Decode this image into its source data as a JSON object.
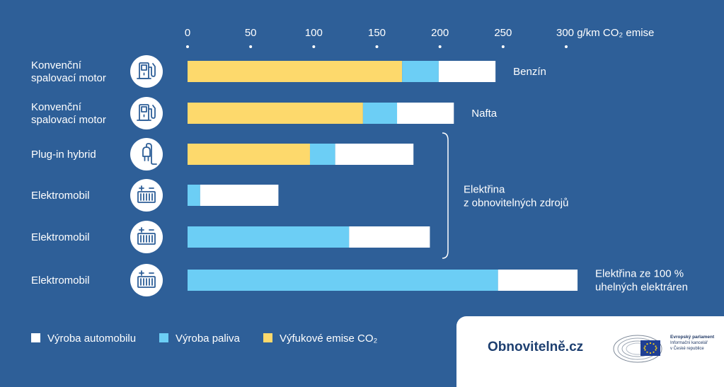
{
  "chart_data": {
    "type": "bar",
    "orientation": "horizontal",
    "stacked": true,
    "axis": {
      "ticks": [
        0,
        50,
        100,
        150,
        200,
        250,
        300
      ],
      "tick_labels": [
        "0",
        "50",
        "100",
        "150",
        "200",
        "250",
        "300 g/km CO₂ emise"
      ],
      "xlim": [
        0,
        300
      ]
    },
    "categories": [
      {
        "label_lines": [
          "Konvenční",
          "spalovací motor"
        ],
        "icon": "fuel-pump-icon"
      },
      {
        "label_lines": [
          "Konvenční",
          "spalovací motor"
        ],
        "icon": "fuel-pump-icon"
      },
      {
        "label_lines": [
          "Plug-in hybrid"
        ],
        "icon": "plug-icon"
      },
      {
        "label_lines": [
          "Elektromobil"
        ],
        "icon": "battery-icon"
      },
      {
        "label_lines": [
          "Elektromobil"
        ],
        "icon": "battery-icon"
      },
      {
        "label_lines": [
          "Elektromobil"
        ],
        "icon": "battery-icon"
      }
    ],
    "series": [
      {
        "name": "Výfukové emise CO₂",
        "color": "#fdd96c",
        "values": [
          170,
          139,
          97,
          0,
          0,
          0
        ]
      },
      {
        "name": "Výroba paliva",
        "color": "#6ccef5",
        "values": [
          29,
          27,
          20,
          10,
          128,
          246
        ]
      },
      {
        "name": "Výroba automobilu",
        "color": "#ffffff",
        "values": [
          45,
          45,
          62,
          62,
          64,
          63
        ]
      }
    ],
    "legend_order": [
      2,
      1,
      0
    ],
    "legend_position": "bottom-left",
    "annotations": [
      {
        "text_lines": [
          "Benzín"
        ],
        "row": 0
      },
      {
        "text_lines": [
          "Nafta"
        ],
        "row": 1
      },
      {
        "text_lines": [
          "Elektřina",
          "z obnovitelných zdrojů"
        ],
        "rows": [
          2,
          4
        ],
        "bracket": true
      },
      {
        "text_lines": [
          "Elektřina  ze 100 %",
          "uhelných elektráren"
        ],
        "row": 5
      }
    ],
    "grid": false
  },
  "logos": {
    "obnovitelne": "Obnovitelně.cz",
    "ep_lines": [
      "Evropský parlament",
      "Informační kancelář",
      "v České republice"
    ]
  },
  "colors": {
    "background": "#2e5f98",
    "icon_circle": "#ffffff",
    "icon_stroke": "#2e5f98"
  }
}
